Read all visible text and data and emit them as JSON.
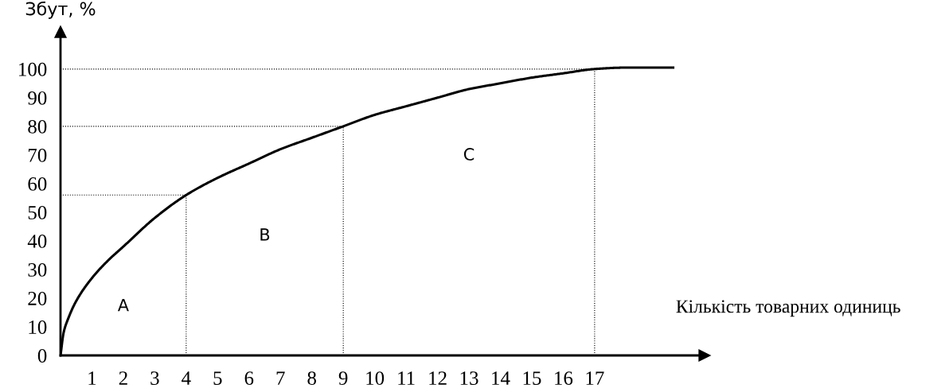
{
  "chart_data": {
    "type": "line",
    "xlabel": "Кількість товарних одиниць",
    "ylabel": "Збут, %",
    "series": [
      {
        "color": "#000000",
        "x": [
          0,
          0.1,
          0.25,
          0.5,
          1,
          1.5,
          2,
          3,
          4,
          5,
          6,
          7,
          8,
          9,
          10,
          11,
          12,
          13,
          14,
          15,
          16,
          17,
          18,
          19.5
        ],
        "values": [
          0,
          8,
          13,
          19,
          27,
          33,
          38,
          48,
          56,
          62,
          67,
          72,
          76,
          80,
          84,
          87,
          90,
          93,
          95,
          97,
          98.5,
          100,
          100.5,
          100.5
        ]
      }
    ],
    "xlim": [
      0,
      20.5
    ],
    "ylim": [
      0,
      113
    ],
    "xticks": [
      1,
      2,
      3,
      4,
      5,
      6,
      7,
      8,
      9,
      10,
      11,
      12,
      13,
      14,
      15,
      16,
      17
    ],
    "yticks": [
      0,
      10,
      20,
      30,
      40,
      50,
      60,
      70,
      80,
      90,
      100
    ],
    "ref_lines": [
      {
        "axis": "y",
        "value": 100,
        "line_style": "dotted"
      },
      {
        "axis": "y",
        "value": 80,
        "line_style": "dotted"
      },
      {
        "axis": "y",
        "value": 56,
        "line_style": "dotted"
      },
      {
        "axis": "x",
        "value": 4,
        "line_style": "dotted"
      },
      {
        "axis": "x",
        "value": 9,
        "line_style": "dotted"
      },
      {
        "axis": "x",
        "value": 17,
        "line_style": "dotted"
      }
    ],
    "annotations": [
      "A",
      "B",
      "C"
    ],
    "grid": false,
    "legend": false,
    "marker": "none",
    "line_style": "solid"
  }
}
